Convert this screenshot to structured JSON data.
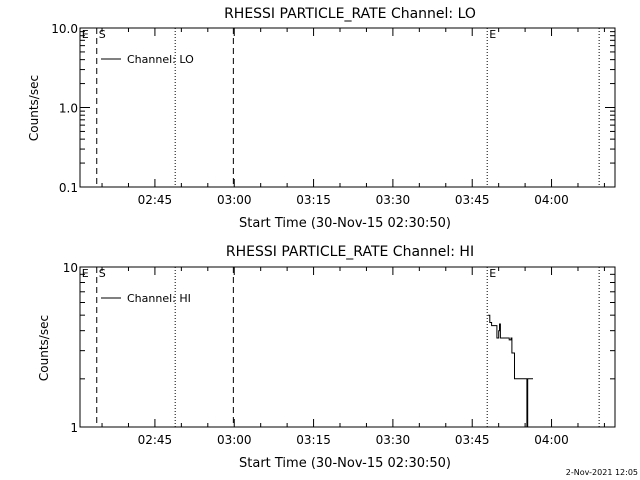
{
  "footer_timestamp": "2-Nov-2021 12:05",
  "chart_data": [
    {
      "type": "line",
      "title": "RHESSI PARTICLE_RATE Channel: LO",
      "xlabel": "Start Time (30-Nov-15 02:30:50)",
      "ylabel": "Counts/sec",
      "y_scale": "log",
      "ylim": [
        0.1,
        10.0
      ],
      "xlim": [
        "02:30:50",
        "04:12:00"
      ],
      "x_ticks": [
        "02:45",
        "03:00",
        "03:15",
        "03:30",
        "03:45",
        "04:00"
      ],
      "y_ticks": [
        "0.1",
        "1.0",
        "10.0"
      ],
      "legend": {
        "entries": [
          "Channel: LO"
        ],
        "placement": "top-left"
      },
      "markers": [
        {
          "label": "E",
          "time": "02:31:50",
          "style": "text"
        },
        {
          "label": "S",
          "time": "02:34:00",
          "style": "dashed"
        },
        {
          "label": "",
          "time": "02:48:50",
          "style": "dotted"
        },
        {
          "label": "",
          "time": "02:59:50",
          "style": "dashed"
        },
        {
          "label": "E",
          "time": "03:47:50",
          "style": "dotted"
        },
        {
          "label": "",
          "time": "04:09:00",
          "style": "dotted"
        }
      ],
      "series": [
        {
          "name": "Channel: LO",
          "x": [],
          "y": []
        }
      ]
    },
    {
      "type": "line",
      "title": "RHESSI PARTICLE_RATE Channel: HI",
      "xlabel": "Start Time (30-Nov-15 02:30:50)",
      "ylabel": "Counts/sec",
      "y_scale": "log",
      "ylim": [
        1,
        10
      ],
      "xlim": [
        "02:30:50",
        "04:12:00"
      ],
      "x_ticks": [
        "02:45",
        "03:00",
        "03:15",
        "03:30",
        "03:45",
        "04:00"
      ],
      "y_ticks": [
        "1",
        "10"
      ],
      "legend": {
        "entries": [
          "Channel: HI"
        ],
        "placement": "top-left"
      },
      "markers": [
        {
          "label": "E",
          "time": "02:31:50",
          "style": "text"
        },
        {
          "label": "S",
          "time": "02:34:00",
          "style": "dashed"
        },
        {
          "label": "",
          "time": "02:48:50",
          "style": "dotted"
        },
        {
          "label": "",
          "time": "02:59:50",
          "style": "dashed"
        },
        {
          "label": "E",
          "time": "03:47:50",
          "style": "dotted"
        },
        {
          "label": "",
          "time": "04:09:00",
          "style": "dotted"
        }
      ],
      "series": [
        {
          "name": "Channel: HI",
          "x": [
            "03:48:00",
            "03:48:20",
            "03:48:40",
            "03:49:00",
            "03:49:30",
            "03:49:40",
            "03:50:00",
            "03:50:10",
            "03:50:20",
            "03:50:40",
            "03:51:00",
            "03:51:50",
            "03:52:00",
            "03:52:20",
            "03:52:30",
            "03:53:00",
            "03:53:50",
            "03:54:50",
            "03:55:00",
            "03:55:20",
            "03:55:30",
            "03:56:00",
            "03:56:10",
            "03:56:30"
          ],
          "y": [
            5.0,
            4.5,
            4.3,
            4.3,
            4.3,
            3.6,
            4.0,
            4.4,
            3.6,
            3.6,
            3.6,
            3.6,
            3.5,
            3.6,
            2.9,
            2.0,
            2.0,
            2.0,
            2.0,
            1.0,
            2.0,
            2.0,
            2.0,
            2.0
          ]
        }
      ]
    }
  ]
}
